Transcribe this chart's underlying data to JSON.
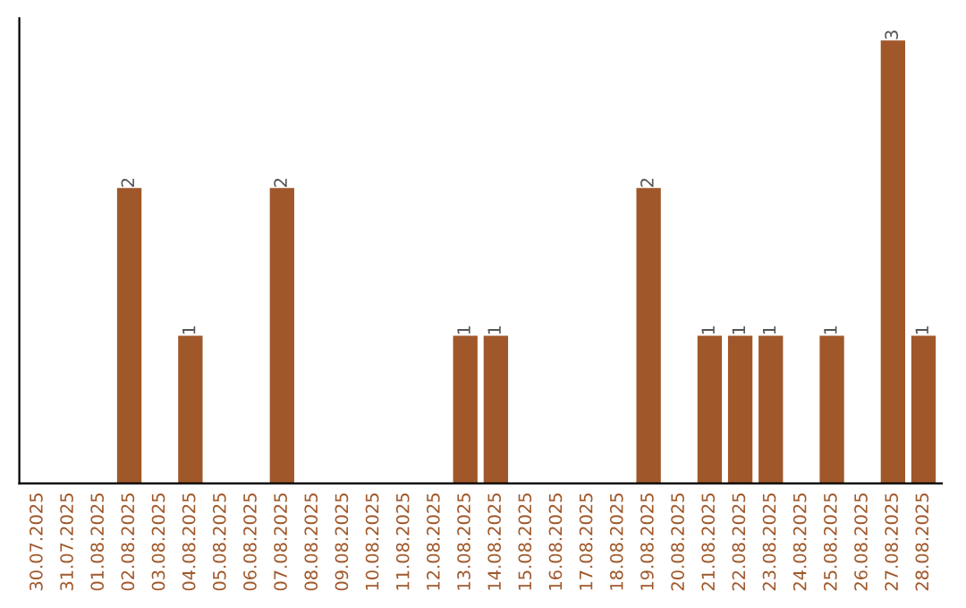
{
  "chart_data": {
    "type": "bar",
    "categories": [
      "30.07.2025",
      "31.07.2025",
      "01.08.2025",
      "02.08.2025",
      "03.08.2025",
      "04.08.2025",
      "05.08.2025",
      "06.08.2025",
      "07.08.2025",
      "08.08.2025",
      "09.08.2025",
      "10.08.2025",
      "11.08.2025",
      "12.08.2025",
      "13.08.2025",
      "14.08.2025",
      "15.08.2025",
      "16.08.2025",
      "17.08.2025",
      "18.08.2025",
      "19.08.2025",
      "20.08.2025",
      "21.08.2025",
      "22.08.2025",
      "23.08.2025",
      "24.08.2025",
      "25.08.2025",
      "26.08.2025",
      "27.08.2025",
      "28.08.2025"
    ],
    "values": [
      0,
      0,
      0,
      2,
      0,
      1,
      0,
      0,
      2,
      0,
      0,
      0,
      0,
      0,
      1,
      1,
      0,
      0,
      0,
      0,
      2,
      0,
      1,
      1,
      1,
      0,
      1,
      0,
      3,
      1
    ],
    "value_labels": [
      null,
      null,
      null,
      "2",
      null,
      "1",
      null,
      null,
      "2",
      null,
      null,
      null,
      null,
      null,
      "1",
      "1",
      null,
      null,
      null,
      null,
      "2",
      null,
      "1",
      "1",
      "1",
      null,
      "1",
      null,
      "3",
      "1"
    ],
    "color": "#a0582a",
    "tick_labels": "x"
  }
}
